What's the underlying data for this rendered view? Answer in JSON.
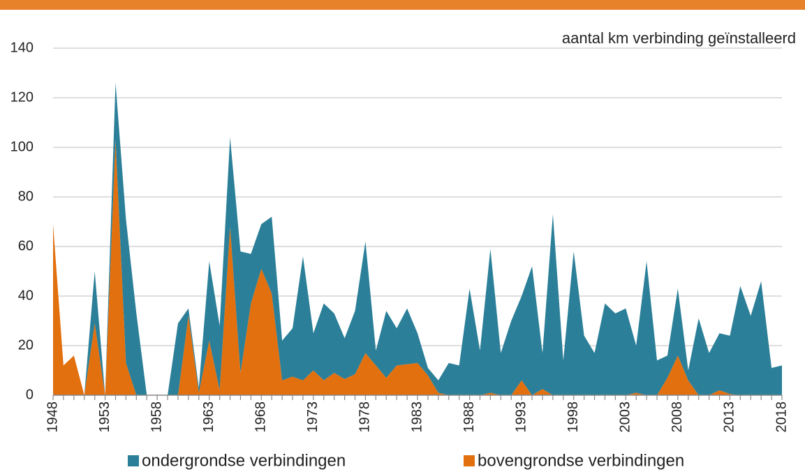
{
  "chart_data": {
    "type": "stacked_area",
    "ylabel": "aantal km verbinding geïnstalleerd",
    "categories": [
      "1948",
      null,
      null,
      null,
      null,
      "1953",
      null,
      null,
      null,
      null,
      "1958",
      null,
      null,
      null,
      null,
      "1963",
      null,
      null,
      null,
      null,
      "1968",
      null,
      null,
      null,
      null,
      "1973",
      null,
      null,
      null,
      null,
      "1978",
      null,
      null,
      null,
      null,
      "1983",
      null,
      null,
      null,
      null,
      "1988",
      null,
      null,
      null,
      null,
      "1993",
      null,
      null,
      null,
      null,
      "1998",
      null,
      null,
      null,
      null,
      "2003",
      null,
      null,
      null,
      null,
      "2008",
      null,
      null,
      null,
      null,
      "2013",
      null,
      null,
      null,
      null,
      "2018"
    ],
    "series": [
      {
        "name": "ondergrondse verbindingen",
        "color": "#2b7f98",
        "values": [
          0,
          0,
          0,
          0,
          21,
          0,
          23,
          58,
          33,
          0,
          0,
          0,
          29,
          3,
          2,
          32,
          26,
          36,
          49,
          20,
          18,
          31,
          16,
          19.5,
          50,
          15,
          31,
          24,
          16.5,
          25.5,
          45,
          6,
          27,
          15,
          22.5,
          12,
          3,
          5,
          13,
          12,
          43,
          18,
          58,
          17,
          30,
          34,
          52,
          14.5,
          73,
          14,
          58,
          24,
          17,
          37,
          33,
          35,
          19,
          54,
          14,
          9,
          27,
          4,
          31,
          17,
          23,
          23.5,
          44,
          32,
          46,
          11,
          12
        ]
      },
      {
        "name": "bovengrondse verbindingen",
        "color": "#e3700f",
        "values": [
          69,
          12,
          16,
          0,
          29,
          0,
          103,
          13,
          0,
          0,
          0,
          0,
          0,
          32,
          1,
          22,
          2,
          68,
          9,
          37,
          51,
          41,
          6,
          7.5,
          6,
          10,
          6,
          9,
          6.5,
          8.5,
          17,
          12,
          7,
          12,
          12.5,
          13,
          8,
          1,
          0,
          0,
          0,
          0,
          1,
          0,
          0,
          6,
          0,
          2.5,
          0,
          0,
          0,
          0,
          0,
          0,
          0,
          0,
          1,
          0,
          0,
          7,
          16,
          6,
          0,
          0,
          2,
          0.5,
          0,
          0,
          0,
          0,
          0
        ]
      }
    ],
    "ylim": [
      0,
      140
    ],
    "yticks": [
      0,
      20,
      40,
      60,
      80,
      100,
      120,
      140
    ],
    "grid": true,
    "legend": "bottom"
  }
}
